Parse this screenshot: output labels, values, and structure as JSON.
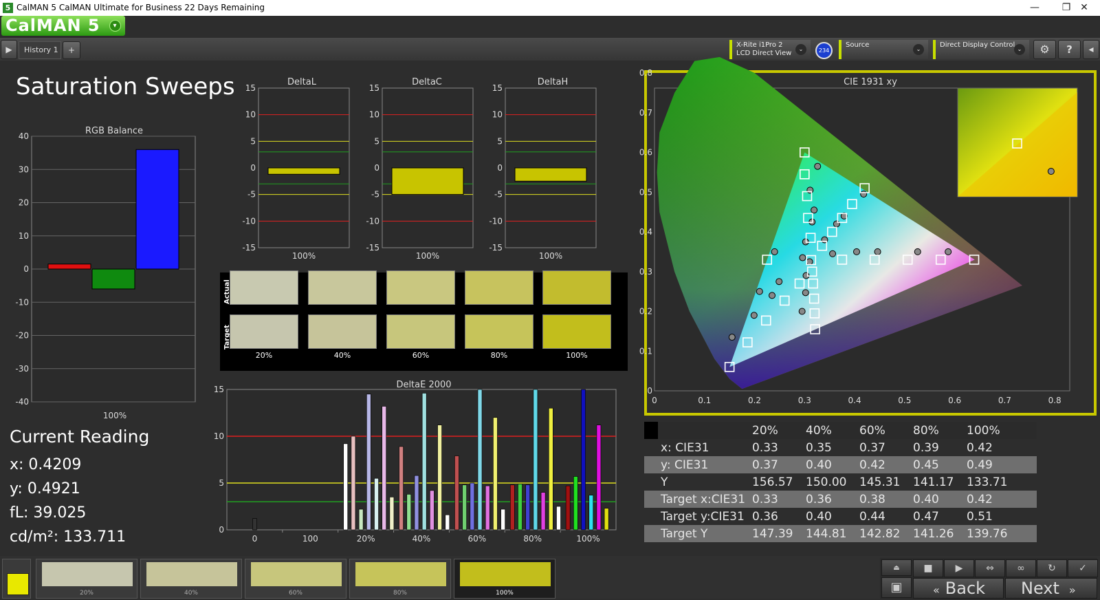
{
  "window": {
    "title": "CalMAN 5 CalMAN Ultimate for Business 22 Days Remaining",
    "app_icon": "5",
    "minimize": "—",
    "restore": "❐",
    "close": "✕"
  },
  "logo": {
    "text": "CalMAN 5",
    "dropdown": "▾"
  },
  "toolbar": {
    "play_icon": "▶",
    "history_tab": "History 1",
    "add_tab": "+",
    "meter_line1": "X-Rite i1Pro 2",
    "meter_line2": "LCD Direct View",
    "meter_badge": "234",
    "source": "Source",
    "display_control": "Direct Display Control",
    "chevron": "⌄",
    "settings_icon": "⚙",
    "help_icon": "?",
    "collapse_icon": "◂"
  },
  "page_title": "Saturation Sweeps",
  "rgb_balance": {
    "title": "RGB Balance",
    "yticks": [
      "40",
      "30",
      "20",
      "10",
      "0",
      "-10",
      "-20",
      "-30",
      "-40"
    ],
    "xlabel": "100%"
  },
  "delta_charts": [
    {
      "title": "DeltaL",
      "xlabel": "100%"
    },
    {
      "title": "DeltaC",
      "xlabel": "100%"
    },
    {
      "title": "DeltaH",
      "xlabel": "100%"
    }
  ],
  "delta_yticks": [
    "15",
    "10",
    "5",
    "0",
    "-5",
    "-10",
    "-15"
  ],
  "swatches": {
    "row_actual": "Actual",
    "row_target": "Target",
    "labels": [
      "20%",
      "40%",
      "60%",
      "80%",
      "100%"
    ],
    "actual_colors": [
      "#c8c9b0",
      "#c8c79c",
      "#c9c780",
      "#c7c35e",
      "#c2bc2e"
    ],
    "target_colors": [
      "#c6c6ae",
      "#c6c49a",
      "#c7c67c",
      "#c6c45a",
      "#c2be1c"
    ]
  },
  "deltae": {
    "title": "DeltaE 2000",
    "yticks": [
      "15",
      "10",
      "5",
      "0"
    ],
    "xticks": [
      "0",
      "100",
      "20%",
      "40%",
      "60%",
      "80%",
      "100%"
    ]
  },
  "current_reading": {
    "title": "Current Reading",
    "x": "x: 0.4209",
    "y": "y: 0.4921",
    "fl": "fL: 39.025",
    "cdm2": "cd/m²: 133.711"
  },
  "cie": {
    "title": "CIE 1931 xy",
    "xticks": [
      "0",
      "0.1",
      "0.2",
      "0.3",
      "0.4",
      "0.5",
      "0.6",
      "0.7",
      "0.8"
    ],
    "yticks": [
      "0.8",
      "0.7",
      "0.6",
      "0.5",
      "0.4",
      "0.3",
      "0.2",
      "0.1",
      "0"
    ]
  },
  "table": {
    "headers": [
      "20%",
      "40%",
      "60%",
      "80%",
      "100%"
    ],
    "rows": [
      {
        "label": "x: CIE31",
        "values": [
          "0.33",
          "0.35",
          "0.37",
          "0.39",
          "0.42"
        ]
      },
      {
        "label": "y: CIE31",
        "values": [
          "0.37",
          "0.40",
          "0.42",
          "0.45",
          "0.49"
        ]
      },
      {
        "label": "Y",
        "values": [
          "156.57",
          "150.00",
          "145.31",
          "141.17",
          "133.71"
        ]
      },
      {
        "label": "Target x:CIE31",
        "values": [
          "0.33",
          "0.36",
          "0.38",
          "0.40",
          "0.42"
        ]
      },
      {
        "label": "Target y:CIE31",
        "values": [
          "0.36",
          "0.40",
          "0.44",
          "0.47",
          "0.51"
        ]
      },
      {
        "label": "Target Y",
        "values": [
          "147.39",
          "144.81",
          "142.82",
          "141.26",
          "139.76"
        ]
      }
    ]
  },
  "bottom": {
    "thumbs": [
      {
        "label": "20%",
        "color": "#c6c6ae"
      },
      {
        "label": "40%",
        "color": "#c6c49a"
      },
      {
        "label": "60%",
        "color": "#c7c67c"
      },
      {
        "label": "80%",
        "color": "#c6c45a"
      },
      {
        "label": "100%",
        "color": "#c2be1c"
      }
    ],
    "back": "Back",
    "next": "Next",
    "controls": [
      "■",
      "▶",
      "⇔",
      "∞",
      "↻",
      "✓"
    ]
  },
  "chart_data": [
    {
      "type": "bar",
      "title": "RGB Balance",
      "categories": [
        "100%"
      ],
      "series": [
        {
          "color": "#e01010",
          "values": [
            1.5
          ]
        },
        {
          "color": "#0f8a0f",
          "values": [
            -6
          ]
        },
        {
          "color": "#1a1aff",
          "values": [
            36
          ]
        }
      ],
      "ylim": [
        -40,
        40
      ]
    },
    {
      "type": "bar",
      "title": "DeltaL",
      "categories": [
        "100%"
      ],
      "values": [
        -1.2
      ],
      "ylim": [
        -15,
        15
      ]
    },
    {
      "type": "bar",
      "title": "DeltaC",
      "categories": [
        "100%"
      ],
      "values": [
        -5
      ],
      "ylim": [
        -15,
        15
      ]
    },
    {
      "type": "bar",
      "title": "DeltaH",
      "categories": [
        "100%"
      ],
      "values": [
        -2.5
      ],
      "ylim": [
        -15,
        15
      ]
    },
    {
      "type": "bar",
      "title": "DeltaE 2000",
      "categories": [
        "0",
        "100",
        "20%",
        "40%",
        "60%",
        "80%",
        "100%"
      ],
      "groups": [
        {
          "category": "0",
          "values": [
            1.2
          ],
          "colors": [
            "#333333"
          ]
        },
        {
          "category": "100",
          "values": [],
          "colors": []
        },
        {
          "category": "20%",
          "values": [
            9.2,
            10.0,
            2.2,
            14.5,
            5.5,
            13.2,
            3.5
          ],
          "colors": [
            "#ffffff",
            "#e8c0c0",
            "#c8e8c0",
            "#b8b8e8",
            "#d8f0f0",
            "#e8b8e8",
            "#f0f0c8"
          ]
        },
        {
          "category": "40%",
          "values": [
            8.9,
            3.8,
            5.8,
            14.6,
            4.2,
            11.2,
            1.6
          ],
          "colors": [
            "#d08080",
            "#90e090",
            "#9090e0",
            "#a0e0e0",
            "#e090e0",
            "#f0f0a0",
            "#ffffff"
          ]
        },
        {
          "category": "60%",
          "values": [
            7.9,
            4.8,
            5.0,
            15.0,
            4.7,
            12.0,
            2.2
          ],
          "colors": [
            "#c05050",
            "#70d070",
            "#7070e0",
            "#80d8e8",
            "#e070e0",
            "#f0f070",
            "#ffffff"
          ]
        },
        {
          "category": "80%",
          "values": [
            4.8,
            4.9,
            4.8,
            15.0,
            4.0,
            13.0,
            2.5
          ],
          "colors": [
            "#b02020",
            "#40d040",
            "#4040d0",
            "#60d8e8",
            "#e040e0",
            "#f0f040",
            "#ffffff"
          ]
        },
        {
          "category": "100%",
          "values": [
            4.7,
            5.7,
            15.0,
            3.7,
            11.2,
            2.3
          ],
          "colors": [
            "#a01010",
            "#20e020",
            "#1010c0",
            "#30e0f0",
            "#e010e0",
            "#e0e010"
          ]
        }
      ],
      "reference_lines": [
        {
          "value": 10,
          "color": "#e02020"
        },
        {
          "value": 5,
          "color": "#e0e020"
        },
        {
          "value": 3,
          "color": "#20a020"
        }
      ],
      "ylim": [
        0,
        15
      ]
    },
    {
      "type": "scatter",
      "title": "CIE 1931 xy",
      "xlim": [
        0,
        0.8
      ],
      "ylim": [
        0,
        0.8
      ],
      "gamut": [
        [
          0.64,
          0.33
        ],
        [
          0.3,
          0.6
        ],
        [
          0.15,
          0.06
        ]
      ],
      "targets": [
        [
          0.313,
          0.329
        ],
        [
          0.3,
          0.6
        ],
        [
          0.3,
          0.545
        ],
        [
          0.305,
          0.49
        ],
        [
          0.307,
          0.435
        ],
        [
          0.312,
          0.385
        ],
        [
          0.15,
          0.06
        ],
        [
          0.186,
          0.122
        ],
        [
          0.223,
          0.177
        ],
        [
          0.26,
          0.227
        ],
        [
          0.29,
          0.27
        ],
        [
          0.639,
          0.33
        ],
        [
          0.572,
          0.33
        ],
        [
          0.506,
          0.33
        ],
        [
          0.44,
          0.33
        ],
        [
          0.375,
          0.33
        ],
        [
          0.225,
          0.33
        ],
        [
          0.321,
          0.155
        ],
        [
          0.32,
          0.195
        ],
        [
          0.319,
          0.232
        ],
        [
          0.317,
          0.27
        ],
        [
          0.315,
          0.3
        ],
        [
          0.42,
          0.51
        ],
        [
          0.395,
          0.47
        ],
        [
          0.375,
          0.435
        ],
        [
          0.355,
          0.4
        ],
        [
          0.335,
          0.365
        ]
      ],
      "measured": [
        [
          0.296,
          0.335
        ],
        [
          0.326,
          0.565
        ],
        [
          0.311,
          0.505
        ],
        [
          0.319,
          0.455
        ],
        [
          0.315,
          0.425
        ],
        [
          0.302,
          0.375
        ],
        [
          0.155,
          0.135
        ],
        [
          0.199,
          0.19
        ],
        [
          0.235,
          0.24
        ],
        [
          0.249,
          0.275
        ],
        [
          0.21,
          0.25
        ],
        [
          0.587,
          0.35
        ],
        [
          0.526,
          0.35
        ],
        [
          0.446,
          0.35
        ],
        [
          0.404,
          0.35
        ],
        [
          0.356,
          0.345
        ],
        [
          0.24,
          0.35
        ],
        [
          0.295,
          0.2
        ],
        [
          0.302,
          0.247
        ],
        [
          0.303,
          0.29
        ],
        [
          0.31,
          0.325
        ],
        [
          0.418,
          0.495
        ],
        [
          0.379,
          0.44
        ],
        [
          0.364,
          0.42
        ],
        [
          0.34,
          0.38
        ]
      ],
      "inset_target": [
        0.74,
        0.62
      ],
      "inset_measured": [
        0.78,
        0.37
      ]
    }
  ]
}
